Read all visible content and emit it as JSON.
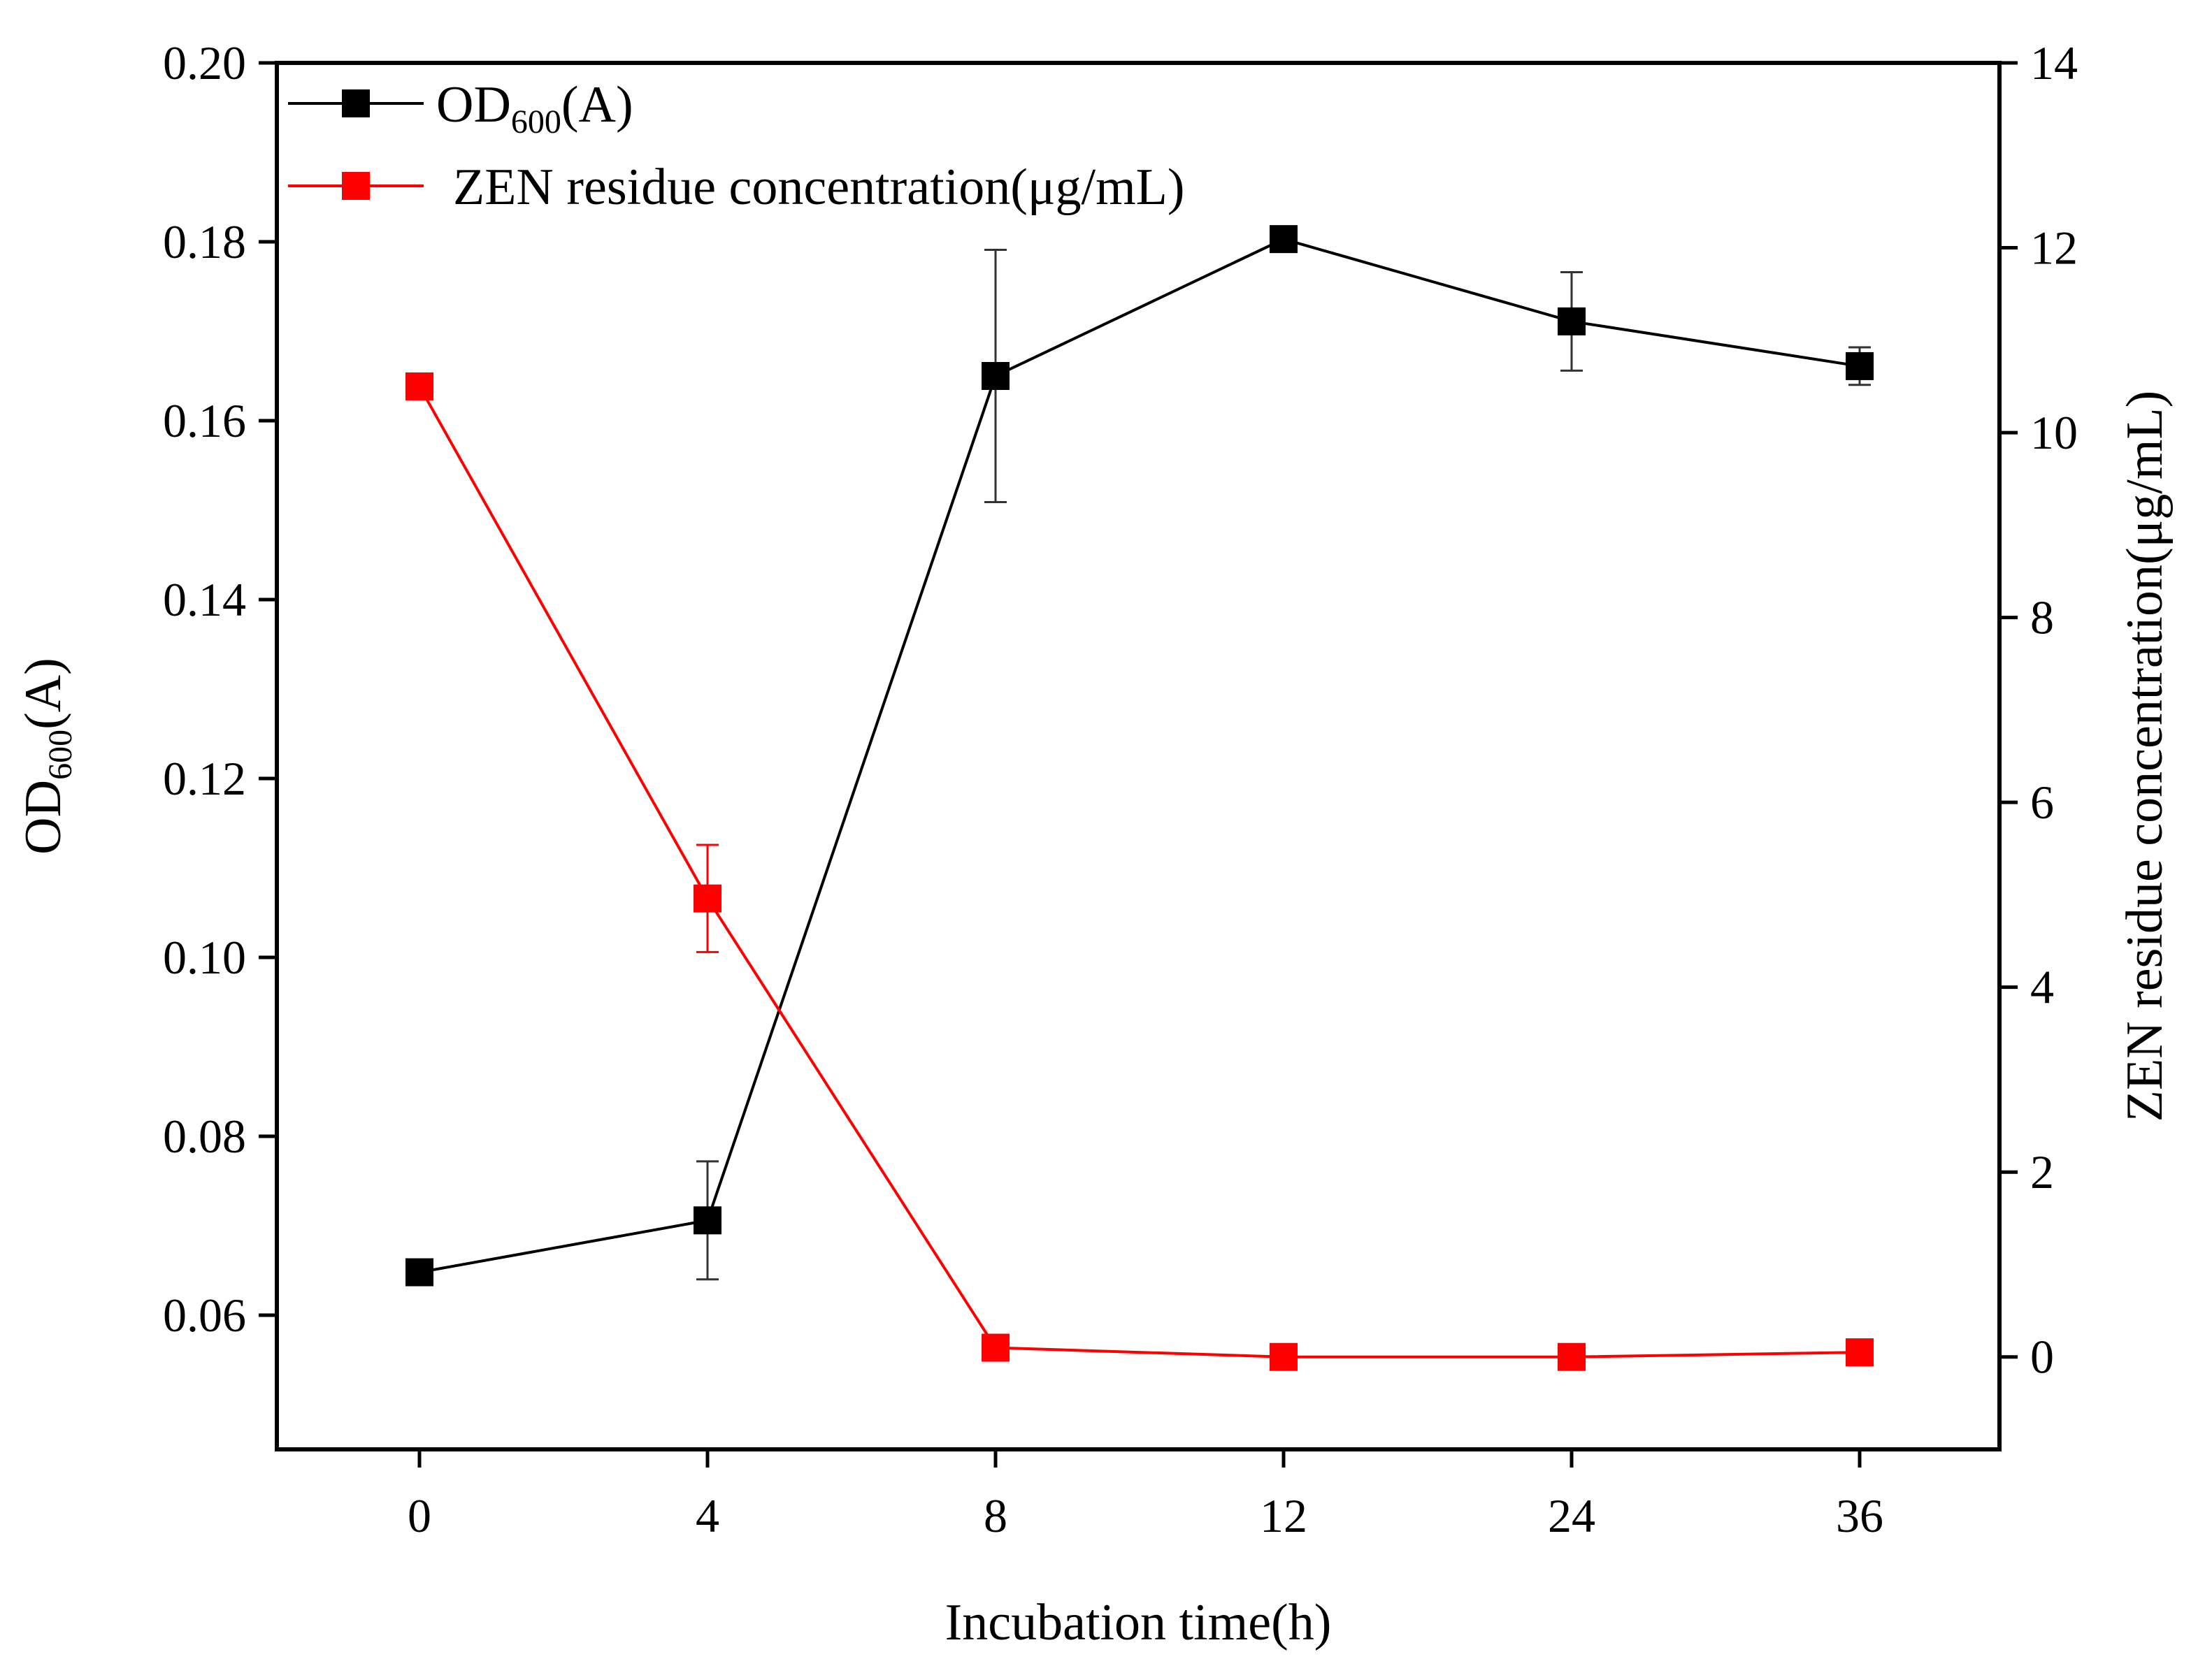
{
  "chart_data": {
    "type": "line",
    "title": "",
    "xlabel": "Incubation time(h)",
    "ylabel": {
      "main": "OD",
      "sub": "600",
      "suffix": "(A)"
    },
    "y2label": "ZEN residue concentration(μg/mL)",
    "categories": [
      "0",
      "4",
      "8",
      "12",
      "24",
      "36"
    ],
    "ylim": [
      0.045,
      0.2
    ],
    "yticks": [
      "0.06",
      "0.08",
      "0.10",
      "0.12",
      "0.14",
      "0.16",
      "0.18",
      "0.20"
    ],
    "y2lim": [
      -1,
      14
    ],
    "y2ticks": [
      "0",
      "2",
      "4",
      "6",
      "8",
      "10",
      "12",
      "14"
    ],
    "legend_position": "top-left",
    "series": [
      {
        "name": "OD600(A)",
        "legend": {
          "main": "OD",
          "sub": "600",
          "suffix": "(A)"
        },
        "axis": "left",
        "color": "#000000",
        "marker": "square",
        "values": [
          0.0648,
          0.0706,
          0.165,
          0.1803,
          0.1711,
          0.1661
        ],
        "errors": [
          0,
          0.0066,
          0.0141,
          0,
          0.0055,
          0.0021
        ]
      },
      {
        "name": "ZEN residue concentration(μg/mL)",
        "legend": {
          "main": "ZEN residue concentration(μg/mL)"
        },
        "axis": "right",
        "color": "#ff0000",
        "marker": "square",
        "values": [
          10.5,
          4.96,
          0.1,
          0.0,
          0.0,
          0.05
        ],
        "errors": [
          0,
          0.58,
          0,
          0,
          0,
          0
        ]
      }
    ]
  }
}
